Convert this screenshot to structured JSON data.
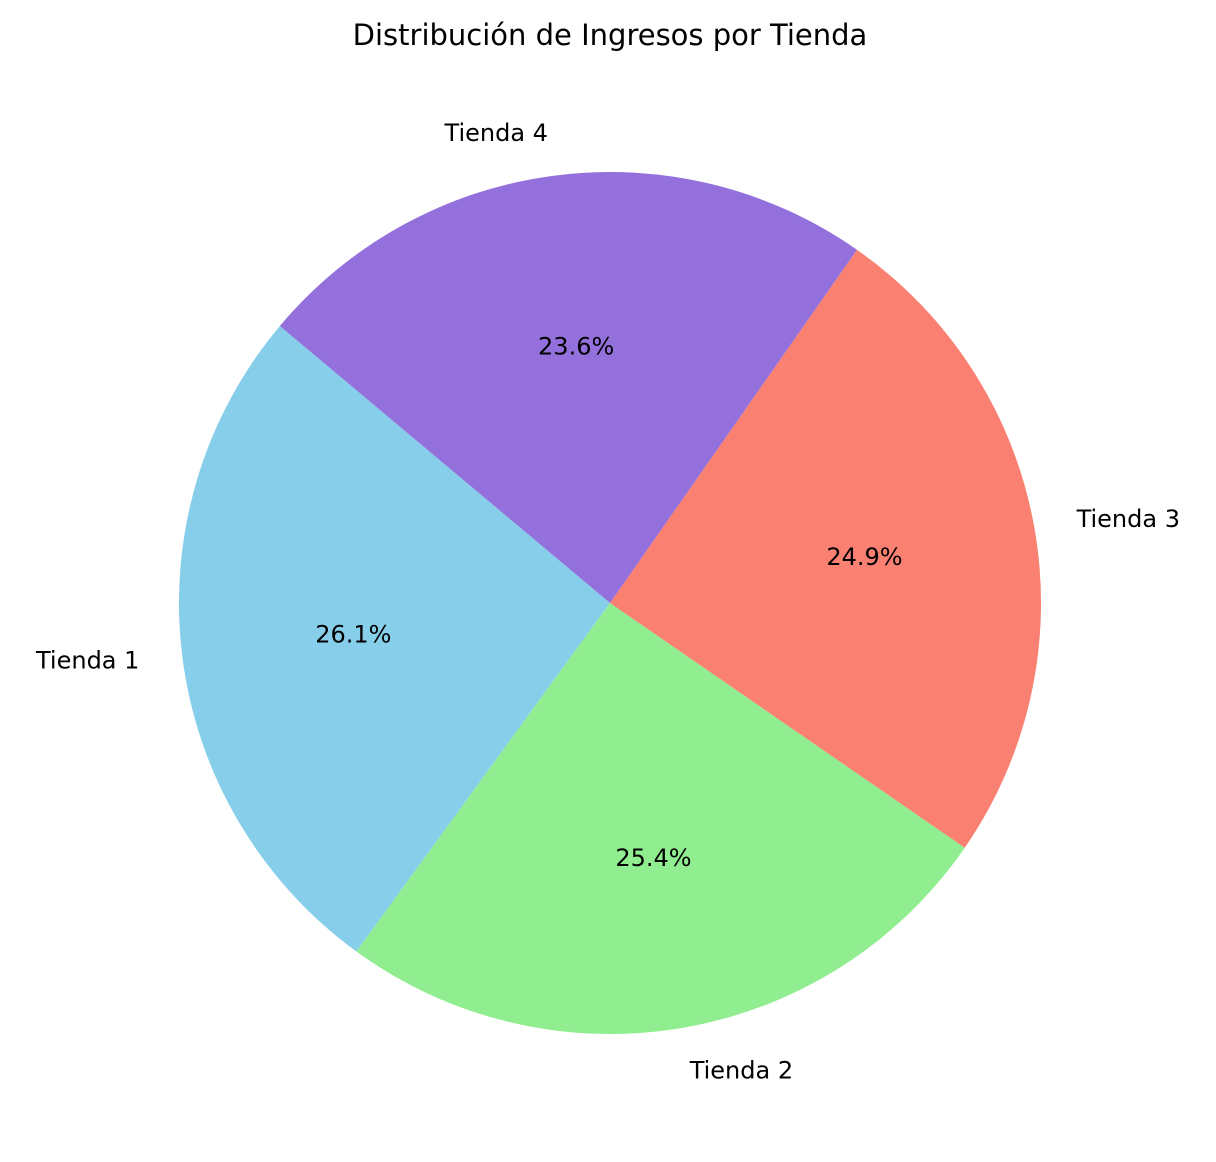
{
  "chart_data": {
    "type": "pie",
    "title": "Distribución de Ingresos por Tienda",
    "categories": [
      "Tienda 1",
      "Tienda 2",
      "Tienda 3",
      "Tienda 4"
    ],
    "values": [
      26.1,
      25.4,
      24.9,
      23.6
    ],
    "value_labels": [
      "26.1%",
      "25.4%",
      "24.9%",
      "23.6%"
    ],
    "colors": [
      "#87ceeb",
      "#90ee90",
      "#fa8072",
      "#9370db"
    ],
    "start_angle_deg": 140,
    "direction": "counterclockwise",
    "legend": "none"
  }
}
